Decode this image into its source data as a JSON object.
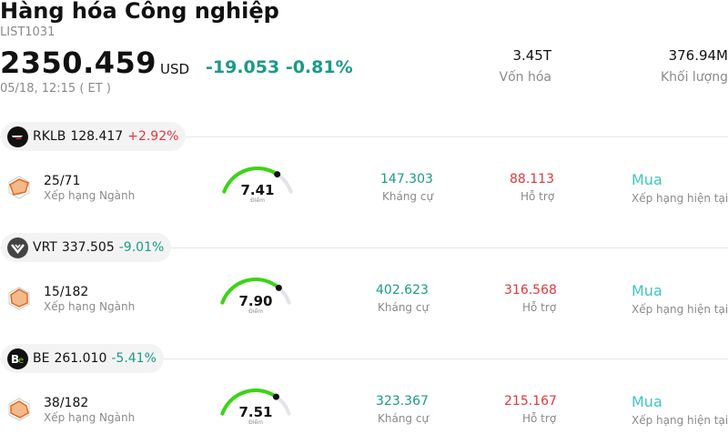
{
  "header": {
    "title": "Hàng hóa Công nghiệp",
    "code": "LIST1031",
    "price": "2350.459",
    "currency": "USD",
    "change": "-19.053 -0.81%",
    "time": "05/18, 12:15  ( ET )",
    "market_cap_value": "3.45T",
    "market_cap_label": "Vốn hóa",
    "volume_value": "376.94M",
    "volume_label": "Khối lượng"
  },
  "colors": {
    "accent_green": "#1a9b86",
    "accent_red": "#e0383e",
    "gauge_green": "#3bd417",
    "rating_teal": "#3fc6c0"
  },
  "stocks": [
    {
      "ticker": "RKLB",
      "price": "128.417",
      "change": "+2.92%",
      "logo_icon": "rocket-lab-icon",
      "rank": "25/71",
      "rank_label": "Xếp hạng Ngành",
      "score": "7.41",
      "score_label": "Điểm",
      "score_value": 7.41,
      "resistance": "147.303",
      "resistance_label": "Kháng cự",
      "support": "88.113",
      "support_label": "Hỗ trợ",
      "rating": "Mua",
      "rating_label": "Xếp hạng hiện tại"
    },
    {
      "ticker": "VRT",
      "price": "337.505",
      "change": "-9.01%",
      "logo_icon": "vertiv-icon",
      "rank": "15/182",
      "rank_label": "Xếp hạng Ngành",
      "score": "7.90",
      "score_label": "Điểm",
      "score_value": 7.9,
      "resistance": "402.623",
      "resistance_label": "Kháng cự",
      "support": "316.568",
      "support_label": "Hỗ trợ",
      "rating": "Mua",
      "rating_label": "Xếp hạng hiện tại"
    },
    {
      "ticker": "BE",
      "price": "261.010",
      "change": "-5.41%",
      "logo_icon": "bloom-energy-icon",
      "rank": "38/182",
      "rank_label": "Xếp hạng Ngành",
      "score": "7.51",
      "score_label": "Điểm",
      "score_value": 7.51,
      "resistance": "323.367",
      "resistance_label": "Kháng cự",
      "support": "215.167",
      "support_label": "Hỗ trợ",
      "rating": "Mua",
      "rating_label": "Xếp hạng hiện tại"
    }
  ]
}
